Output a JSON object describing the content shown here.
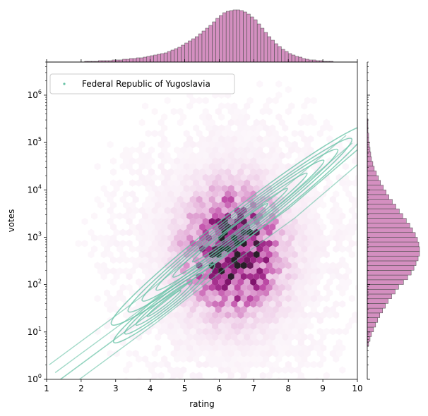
{
  "chart_data": {
    "type": "scatter",
    "subtype": "jointplot-hexbin-with-kde-overlay",
    "title": "",
    "xlabel": "rating",
    "ylabel": "votes",
    "xlim": [
      1,
      10
    ],
    "ylim": [
      1,
      5000000
    ],
    "yscale": "log",
    "x_ticks": [
      "1",
      "2",
      "3",
      "4",
      "5",
      "6",
      "7",
      "8",
      "9",
      "10"
    ],
    "y_ticks": [
      "10^0",
      "10^1",
      "10^2",
      "10^3",
      "10^4",
      "10^5",
      "10^6"
    ],
    "grid": false,
    "legend": {
      "placement": "top-left",
      "entries": [
        "Federal Republic of Yugoslavia"
      ]
    },
    "colors": {
      "hexbin": "#8e0f6b",
      "kde": "#66c2a5",
      "hist_fill": "#d48fc0",
      "hist_edge": "#4a4a4a"
    },
    "hexbin_density": {
      "description": "peak density",
      "center_rating": 6.4,
      "center_votes": 500
    },
    "kde_series": {
      "name": "Federal Republic of Yugoslavia",
      "axis_line": [
        {
          "x": 1.4,
          "y": 1
        },
        {
          "x": 4.0,
          "y": 25
        },
        {
          "x": 6.0,
          "y": 350
        },
        {
          "x": 8.0,
          "y": 4000
        },
        {
          "x": 10.0,
          "y": 70000
        }
      ]
    },
    "marginal_x": {
      "bins_rating": [
        1.0,
        1.1,
        1.2,
        1.3,
        1.4,
        1.5,
        1.6,
        1.7,
        1.8,
        1.9,
        2.0,
        2.1,
        2.2,
        2.3,
        2.4,
        2.5,
        2.6,
        2.7,
        2.8,
        2.9,
        3.0,
        3.1,
        3.2,
        3.3,
        3.4,
        3.5,
        3.6,
        3.7,
        3.8,
        3.9,
        4.0,
        4.1,
        4.2,
        4.3,
        4.4,
        4.5,
        4.6,
        4.7,
        4.8,
        4.9,
        5.0,
        5.1,
        5.2,
        5.3,
        5.4,
        5.5,
        5.6,
        5.7,
        5.8,
        5.9,
        6.0,
        6.1,
        6.2,
        6.3,
        6.4,
        6.5,
        6.6,
        6.7,
        6.8,
        6.9,
        7.0,
        7.1,
        7.2,
        7.3,
        7.4,
        7.5,
        7.6,
        7.7,
        7.8,
        7.9,
        8.0,
        8.1,
        8.2,
        8.3,
        8.4,
        8.5,
        8.6,
        8.7,
        8.8,
        8.9,
        9.0,
        9.1,
        9.2,
        9.3,
        9.4,
        9.5,
        9.6,
        9.7,
        9.8,
        9.9
      ],
      "counts": [
        0,
        0,
        0,
        0,
        0,
        0,
        0,
        0,
        0,
        0,
        0,
        1,
        1,
        1,
        1,
        2,
        2,
        2,
        2,
        3,
        3,
        3,
        4,
        4,
        5,
        5,
        6,
        6,
        7,
        8,
        9,
        10,
        11,
        12,
        13,
        15,
        17,
        19,
        21,
        24,
        27,
        30,
        33,
        36,
        40,
        44,
        48,
        52,
        57,
        62,
        66,
        70,
        72,
        73,
        74,
        74,
        73,
        71,
        68,
        64,
        60,
        54,
        48,
        42,
        36,
        31,
        26,
        22,
        18,
        15,
        12,
        10,
        8,
        7,
        5,
        4,
        3,
        3,
        2,
        2,
        1,
        1,
        1,
        0,
        0,
        0,
        0,
        0,
        0,
        0
      ],
      "max_count": 74
    },
    "marginal_y": {
      "bins_log10_votes": [
        0.7,
        0.8,
        0.9,
        1.0,
        1.1,
        1.2,
        1.3,
        1.4,
        1.5,
        1.6,
        1.7,
        1.8,
        1.9,
        2.0,
        2.1,
        2.2,
        2.3,
        2.4,
        2.5,
        2.6,
        2.7,
        2.8,
        2.9,
        3.0,
        3.1,
        3.2,
        3.3,
        3.4,
        3.5,
        3.6,
        3.7,
        3.8,
        3.9,
        4.0,
        4.1,
        4.2,
        4.3,
        4.4,
        4.5,
        4.6,
        4.7,
        4.8,
        4.9,
        5.0,
        5.1,
        5.2,
        5.3,
        5.4,
        5.5,
        5.6
      ],
      "counts": [
        2,
        4,
        6,
        9,
        12,
        15,
        18,
        22,
        26,
        30,
        35,
        40,
        45,
        52,
        58,
        63,
        67,
        70,
        73,
        75,
        75,
        74,
        72,
        69,
        65,
        61,
        56,
        51,
        46,
        41,
        36,
        31,
        27,
        23,
        19,
        16,
        13,
        10,
        8,
        6,
        5,
        4,
        3,
        2,
        2,
        1,
        1,
        1,
        0,
        0
      ],
      "max_count": 75
    }
  }
}
